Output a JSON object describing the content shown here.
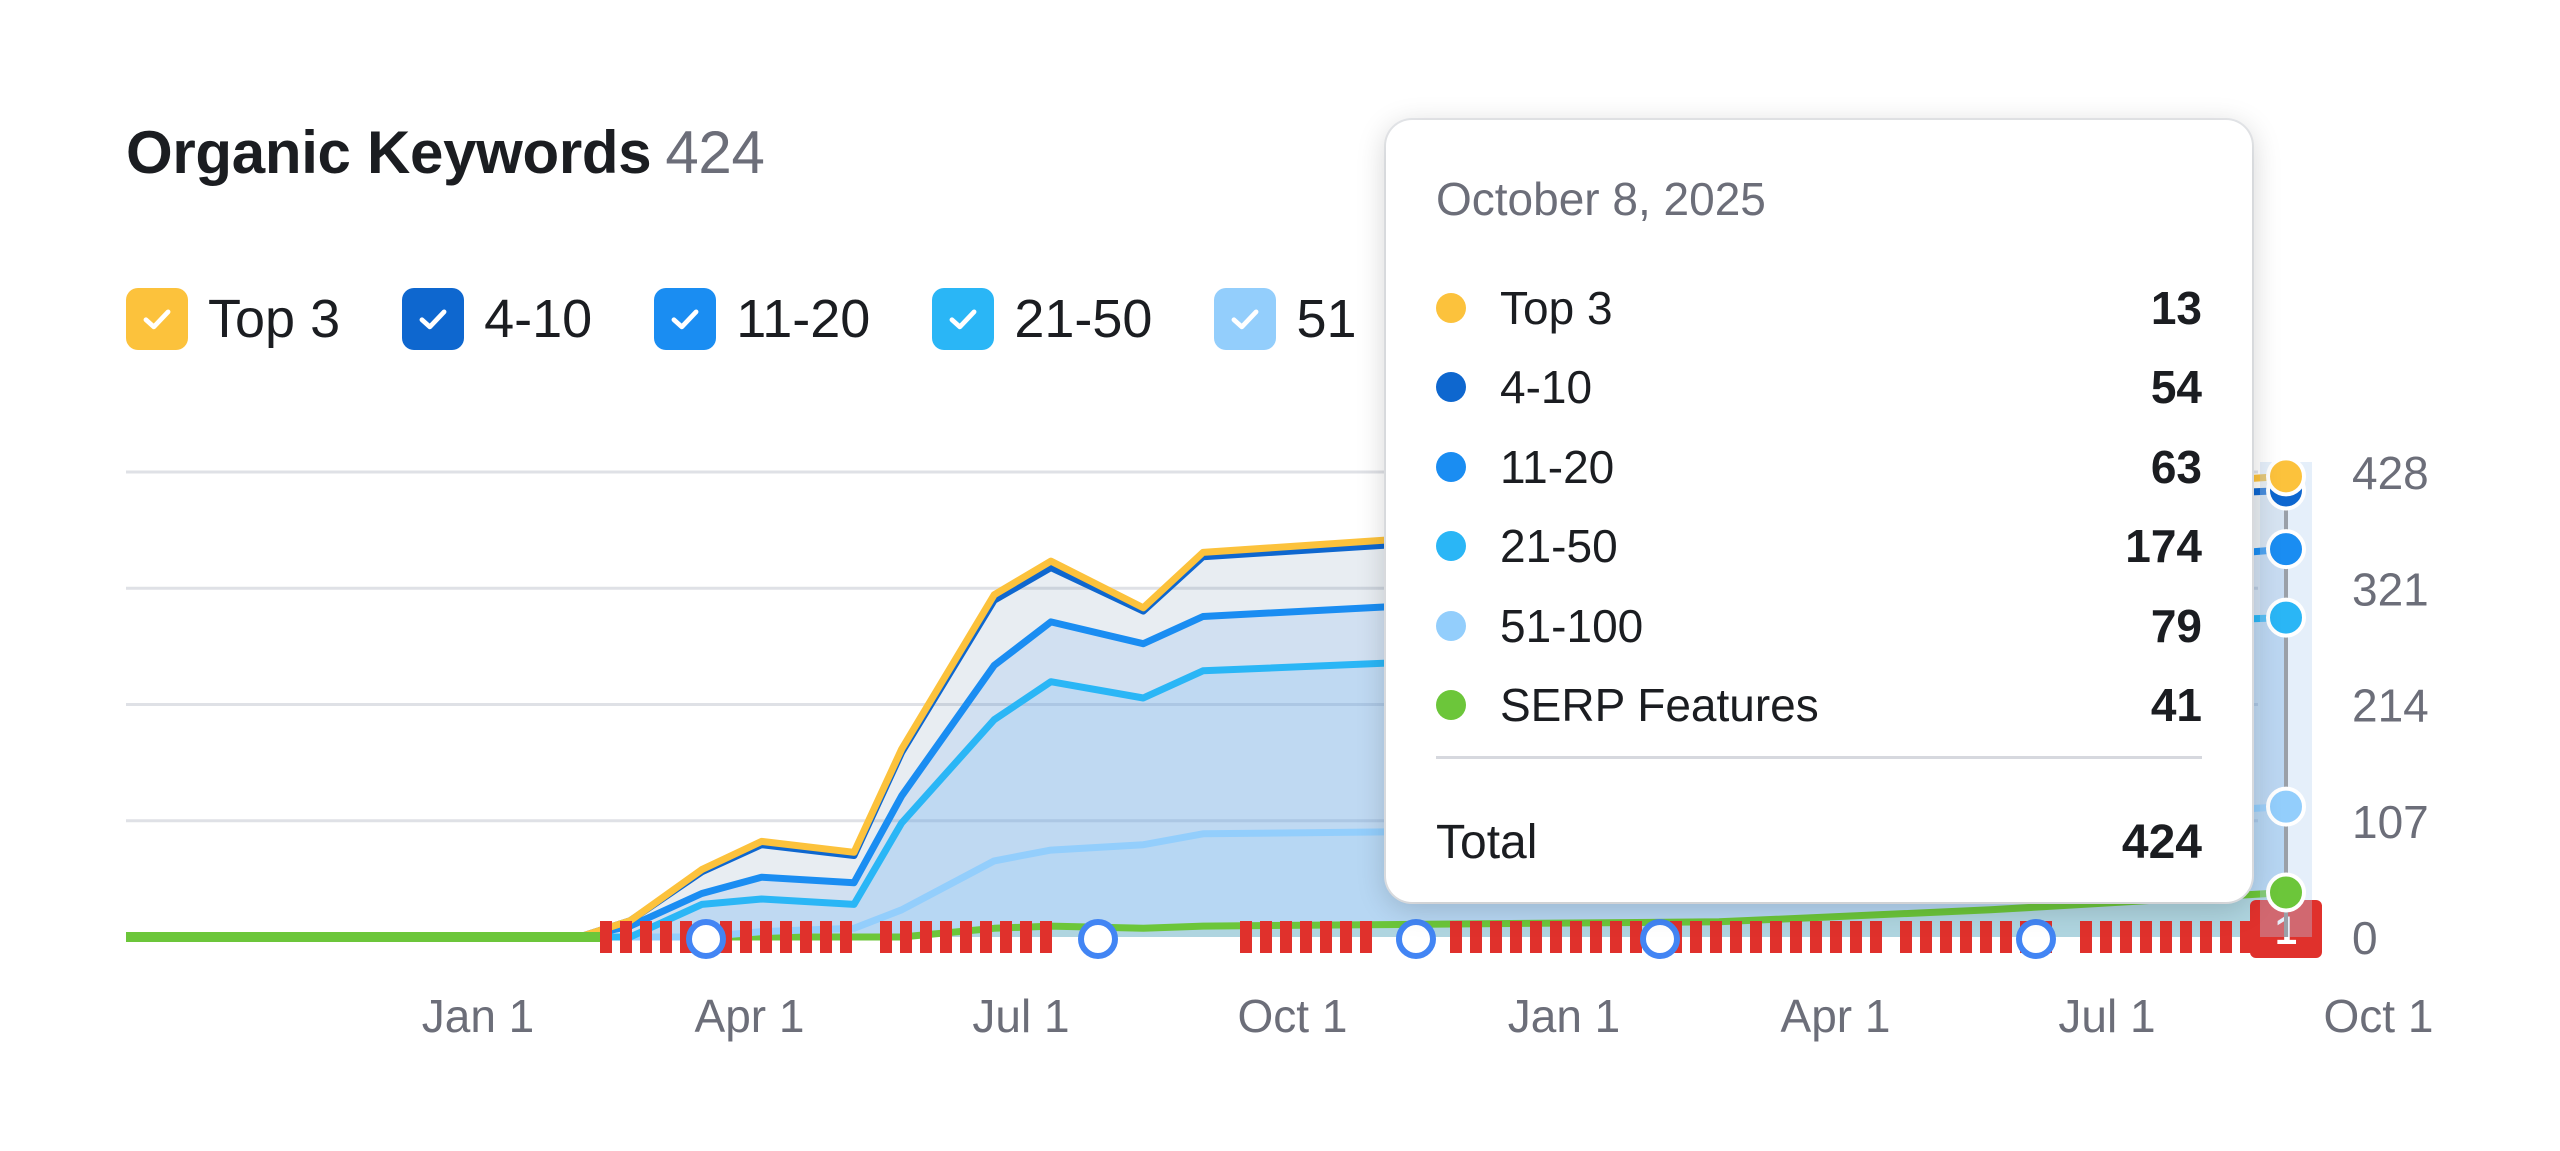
{
  "header": {
    "title": "Organic Keywords",
    "count": "424"
  },
  "legend": [
    {
      "label": "Top 3",
      "color": "#fcc23c"
    },
    {
      "label": "4-10",
      "color": "#0e67cf"
    },
    {
      "label": "11-20",
      "color": "#1a8df2"
    },
    {
      "label": "21-50",
      "color": "#2ab6f6"
    },
    {
      "label": "51",
      "color": "#93cefc"
    }
  ],
  "tooltip": {
    "date": "October 8, 2025",
    "rows": [
      {
        "label": "Top 3",
        "value": "13",
        "color": "#fcc23c"
      },
      {
        "label": "4-10",
        "value": "54",
        "color": "#0e67cf"
      },
      {
        "label": "11-20",
        "value": "63",
        "color": "#1a8df2"
      },
      {
        "label": "21-50",
        "value": "174",
        "color": "#2ab6f6"
      },
      {
        "label": "51-100",
        "value": "79",
        "color": "#93cefc"
      },
      {
        "label": "SERP Features",
        "value": "41",
        "color": "#6cc63a"
      }
    ],
    "total_label": "Total",
    "total_value": "424"
  },
  "chart_data": {
    "type": "area",
    "x_ticks": [
      "Jan 1",
      "Apr 1",
      "Jul 1",
      "Oct 1",
      "Jan 1",
      "Apr 1",
      "Jul 1",
      "Oct 1"
    ],
    "y_ticks": [
      0,
      107,
      214,
      321,
      428
    ],
    "ylim": [
      0,
      428
    ],
    "grid": true,
    "x": [
      "Oct 15, 2023",
      "Jan 1, 2024",
      "Mar 15, 2024",
      "Apr 1, 2024",
      "Apr 25, 2024",
      "May 15, 2024",
      "Jun 15, 2024",
      "Jul 1, 2024",
      "Aug 1, 2024",
      "Aug 20, 2024",
      "Sep 20, 2024",
      "Oct 10, 2024",
      "Apr 1, 2025",
      "Jul 1, 2025",
      "Oct 8, 2025"
    ],
    "series": [
      {
        "name": "SERP Features",
        "color": "#6cc63a",
        "values": [
          0,
          0,
          0,
          0,
          0,
          0,
          0,
          0,
          8,
          10,
          8,
          10,
          14,
          25,
          41
        ]
      },
      {
        "name": "51-100",
        "color": "#93cefc",
        "values": [
          0,
          0,
          0,
          0,
          0,
          5,
          8,
          25,
          70,
          80,
          85,
          95,
          100,
          105,
          120
        ]
      },
      {
        "name": "21-50",
        "color": "#2ab6f6",
        "values": [
          0,
          0,
          0,
          0,
          30,
          35,
          30,
          105,
          200,
          235,
          220,
          245,
          265,
          285,
          294
        ]
      },
      {
        "name": "11-20",
        "color": "#1a8df2",
        "values": [
          0,
          0,
          0,
          10,
          40,
          55,
          50,
          130,
          250,
          290,
          270,
          295,
          320,
          335,
          357
        ]
      },
      {
        "name": "4-10",
        "color": "#0e67cf",
        "values": [
          0,
          0,
          0,
          15,
          60,
          85,
          75,
          170,
          310,
          340,
          300,
          350,
          380,
          400,
          411
        ]
      },
      {
        "name": "Top 3",
        "color": "#fcc23c",
        "values": [
          0,
          0,
          0,
          15,
          62,
          88,
          78,
          173,
          315,
          346,
          303,
          354,
          386,
          407,
          424
        ]
      }
    ],
    "annotation": "1"
  }
}
